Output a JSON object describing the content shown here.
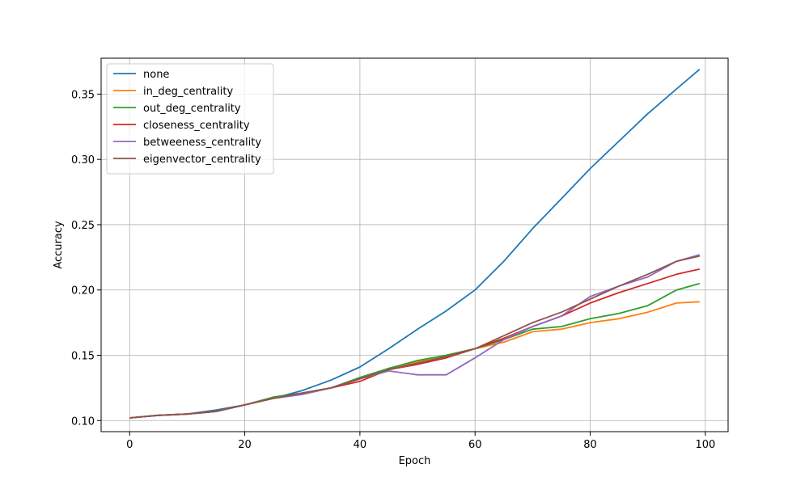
{
  "chart_data": {
    "type": "line",
    "title": "",
    "xlabel": "Epoch",
    "ylabel": "Accuracy",
    "xlim": [
      -4.95,
      103.95
    ],
    "ylim": [
      0.0915,
      0.3775
    ],
    "x_ticks": [
      0,
      20,
      40,
      60,
      80,
      100
    ],
    "y_ticks": [
      0.1,
      0.15,
      0.2,
      0.25,
      0.3,
      0.35
    ],
    "x_tick_labels": [
      "0",
      "20",
      "40",
      "60",
      "80",
      "100"
    ],
    "y_tick_labels": [
      "0.10",
      "0.15",
      "0.20",
      "0.25",
      "0.30",
      "0.35"
    ],
    "grid": true,
    "legend_position": "top-left",
    "series": [
      {
        "name": "none",
        "color": "#1f77b4",
        "x": [
          0,
          5,
          10,
          15,
          20,
          25,
          30,
          35,
          40,
          45,
          50,
          55,
          60,
          65,
          70,
          75,
          80,
          85,
          90,
          95,
          99
        ],
        "y": [
          0.102,
          0.104,
          0.105,
          0.108,
          0.112,
          0.117,
          0.123,
          0.131,
          0.141,
          0.155,
          0.17,
          0.184,
          0.2,
          0.222,
          0.247,
          0.27,
          0.293,
          0.314,
          0.335,
          0.354,
          0.369
        ]
      },
      {
        "name": "in_deg_centrality",
        "color": "#ff7f0e",
        "x": [
          0,
          5,
          10,
          15,
          20,
          25,
          30,
          35,
          40,
          45,
          50,
          55,
          60,
          65,
          70,
          75,
          80,
          85,
          90,
          95,
          99
        ],
        "y": [
          0.102,
          0.104,
          0.105,
          0.107,
          0.112,
          0.117,
          0.121,
          0.125,
          0.132,
          0.14,
          0.145,
          0.15,
          0.155,
          0.16,
          0.168,
          0.17,
          0.175,
          0.178,
          0.183,
          0.19,
          0.191
        ]
      },
      {
        "name": "out_deg_centrality",
        "color": "#2ca02c",
        "x": [
          0,
          5,
          10,
          15,
          20,
          25,
          30,
          35,
          40,
          45,
          50,
          55,
          60,
          65,
          70,
          75,
          80,
          85,
          90,
          95,
          99
        ],
        "y": [
          0.102,
          0.104,
          0.105,
          0.107,
          0.112,
          0.118,
          0.121,
          0.125,
          0.133,
          0.14,
          0.146,
          0.15,
          0.155,
          0.162,
          0.17,
          0.172,
          0.178,
          0.182,
          0.188,
          0.2,
          0.205
        ]
      },
      {
        "name": "closeness_centrality",
        "color": "#d62728",
        "x": [
          0,
          5,
          10,
          15,
          20,
          25,
          30,
          35,
          40,
          45,
          50,
          55,
          60,
          65,
          70,
          75,
          80,
          85,
          90,
          95,
          99
        ],
        "y": [
          0.102,
          0.104,
          0.105,
          0.107,
          0.112,
          0.117,
          0.121,
          0.125,
          0.13,
          0.139,
          0.143,
          0.148,
          0.155,
          0.163,
          0.172,
          0.18,
          0.19,
          0.198,
          0.205,
          0.212,
          0.216
        ]
      },
      {
        "name": "betweeness_centrality",
        "color": "#9467bd",
        "x": [
          0,
          5,
          10,
          15,
          20,
          25,
          30,
          35,
          40,
          45,
          50,
          55,
          60,
          65,
          70,
          75,
          80,
          85,
          90,
          95,
          99
        ],
        "y": [
          0.102,
          0.104,
          0.105,
          0.107,
          0.112,
          0.117,
          0.12,
          0.125,
          0.132,
          0.138,
          0.135,
          0.135,
          0.148,
          0.162,
          0.172,
          0.18,
          0.195,
          0.203,
          0.21,
          0.222,
          0.227
        ]
      },
      {
        "name": "eigenvector_centrality",
        "color": "#8c564b",
        "x": [
          0,
          5,
          10,
          15,
          20,
          25,
          30,
          35,
          40,
          45,
          50,
          55,
          60,
          65,
          70,
          75,
          80,
          85,
          90,
          95,
          99
        ],
        "y": [
          0.102,
          0.104,
          0.105,
          0.107,
          0.112,
          0.117,
          0.121,
          0.125,
          0.132,
          0.139,
          0.144,
          0.149,
          0.155,
          0.165,
          0.175,
          0.183,
          0.193,
          0.203,
          0.212,
          0.222,
          0.226
        ]
      }
    ]
  }
}
